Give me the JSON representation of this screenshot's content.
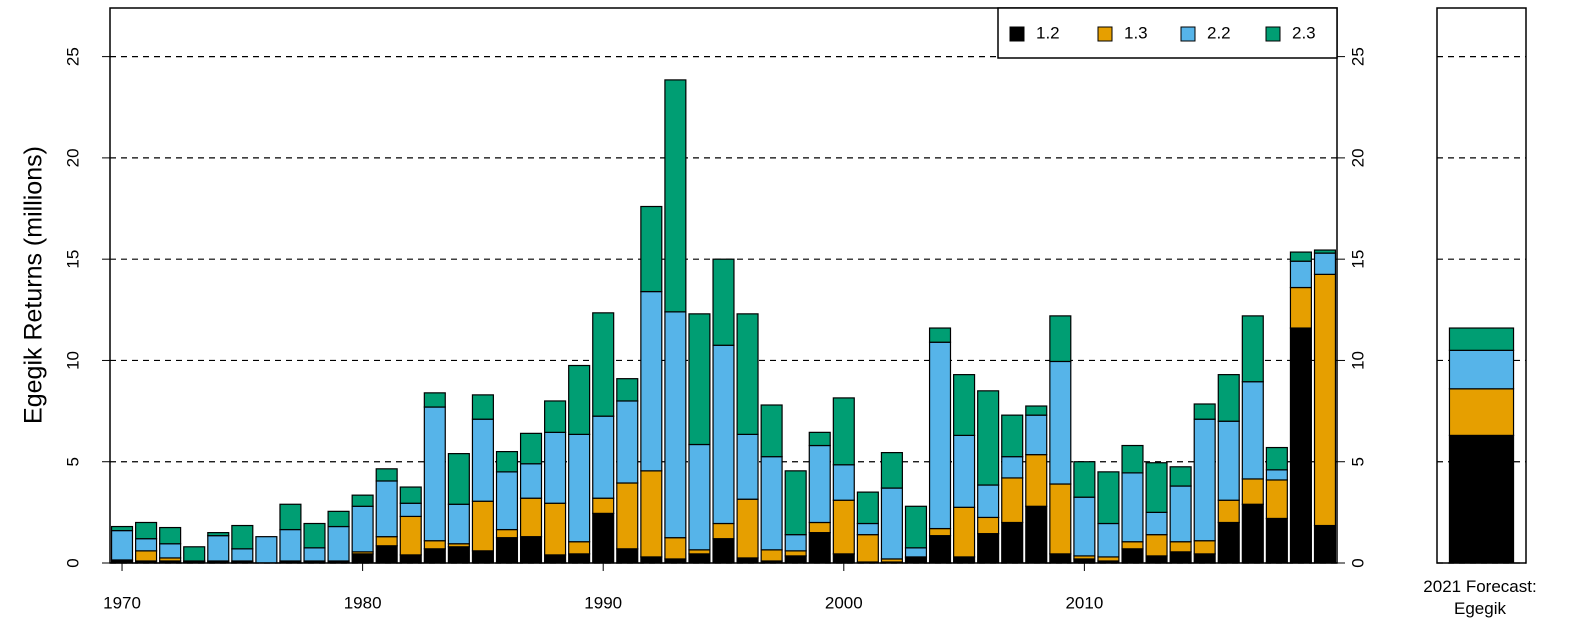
{
  "chart_data": [
    {
      "type": "bar",
      "stacked": true,
      "ylabel": "Egegik Returns (millions)",
      "x": [
        1970,
        1971,
        1972,
        1973,
        1974,
        1975,
        1976,
        1977,
        1978,
        1979,
        1980,
        1981,
        1982,
        1983,
        1984,
        1985,
        1986,
        1987,
        1988,
        1989,
        1990,
        1991,
        1992,
        1993,
        1994,
        1995,
        1996,
        1997,
        1998,
        1999,
        2000,
        2001,
        2002,
        2003,
        2004,
        2005,
        2006,
        2007,
        2008,
        2009,
        2010,
        2011,
        2012,
        2013,
        2014,
        2015,
        2016,
        2017,
        2018,
        2019,
        2020
      ],
      "xlim": [
        1969.5,
        2020.5
      ],
      "xticks": [
        1970,
        1980,
        1990,
        2000,
        2010
      ],
      "ylim": [
        0,
        27.4
      ],
      "yticks": [
        0,
        5,
        10,
        15,
        20,
        25
      ],
      "grid": true,
      "legend": "topright",
      "series": [
        {
          "name": "1.2",
          "color": "#000000",
          "values": [
            0.1,
            0.1,
            0.1,
            0.05,
            0.05,
            0.05,
            0,
            0.05,
            0.05,
            0.05,
            0.45,
            0.85,
            0.4,
            0.7,
            0.8,
            0.6,
            1.25,
            1.3,
            0.4,
            0.45,
            2.45,
            0.7,
            0.3,
            0.2,
            0.45,
            1.2,
            0.25,
            0.1,
            0.35,
            1.5,
            0.45,
            0.05,
            0.05,
            0.25,
            1.35,
            0.3,
            1.45,
            2.0,
            2.8,
            0.45,
            0.2,
            0.1,
            0.7,
            0.35,
            0.55,
            0.45,
            2.0,
            2.9,
            2.2,
            11.6,
            1.85
          ]
        },
        {
          "name": "1.3",
          "color": "#E69F00",
          "values": [
            0.05,
            0.5,
            0.15,
            0,
            0.05,
            0.05,
            0,
            0.05,
            0.05,
            0.05,
            0.1,
            0.45,
            1.9,
            0.4,
            0.15,
            2.45,
            0.4,
            1.9,
            2.55,
            0.6,
            0.75,
            3.25,
            4.25,
            1.05,
            0.2,
            0.75,
            2.9,
            0.55,
            0.25,
            0.5,
            2.65,
            1.35,
            0.15,
            0.05,
            0.35,
            2.45,
            0.8,
            2.2,
            2.55,
            3.45,
            0.15,
            0.2,
            0.35,
            1.05,
            0.5,
            0.65,
            1.1,
            1.25,
            1.9,
            2.0,
            12.4
          ]
        },
        {
          "name": "2.2",
          "color": "#56B4E9",
          "values": [
            1.45,
            0.6,
            0.7,
            0.05,
            1.25,
            0.6,
            1.3,
            1.55,
            0.65,
            1.7,
            2.25,
            2.75,
            0.65,
            6.6,
            1.95,
            4.05,
            2.85,
            1.7,
            3.5,
            5.3,
            4.05,
            4.05,
            8.85,
            11.15,
            5.2,
            8.8,
            3.2,
            4.6,
            0.8,
            3.8,
            1.75,
            0.55,
            3.5,
            0.45,
            9.2,
            3.55,
            1.6,
            1.05,
            1.95,
            6.05,
            2.9,
            1.65,
            3.4,
            1.1,
            2.75,
            6.0,
            3.9,
            4.8,
            0.5,
            1.3,
            1.05
          ]
        },
        {
          "name": "2.3",
          "color": "#009E73",
          "values": [
            0.2,
            0.8,
            0.8,
            0.7,
            0.15,
            1.15,
            0,
            1.25,
            1.2,
            0.75,
            0.55,
            0.6,
            0.8,
            0.7,
            2.5,
            1.2,
            1.0,
            1.5,
            1.55,
            3.4,
            5.1,
            1.1,
            4.2,
            11.45,
            6.45,
            4.25,
            5.95,
            2.55,
            3.15,
            0.65,
            3.3,
            1.55,
            1.75,
            2.05,
            0.7,
            3.0,
            4.65,
            2.05,
            0.45,
            2.25,
            1.75,
            2.55,
            1.35,
            2.45,
            0.95,
            0.75,
            2.3,
            3.25,
            1.1,
            0.45,
            0.15
          ]
        }
      ]
    },
    {
      "type": "bar",
      "stacked": true,
      "categories": [
        "2021 Forecast: Egegik"
      ],
      "ylim": [
        0,
        27.4
      ],
      "yticks": [
        0,
        5,
        10,
        15,
        20,
        25
      ],
      "grid": true,
      "series": [
        {
          "color": "#000000",
          "values": [
            6.3
          ]
        },
        {
          "color": "#E69F00",
          "values": [
            2.3
          ]
        },
        {
          "color": "#56B4E9",
          "values": [
            1.9
          ]
        },
        {
          "color": "#009E73",
          "values": [
            1.1
          ]
        }
      ]
    }
  ]
}
